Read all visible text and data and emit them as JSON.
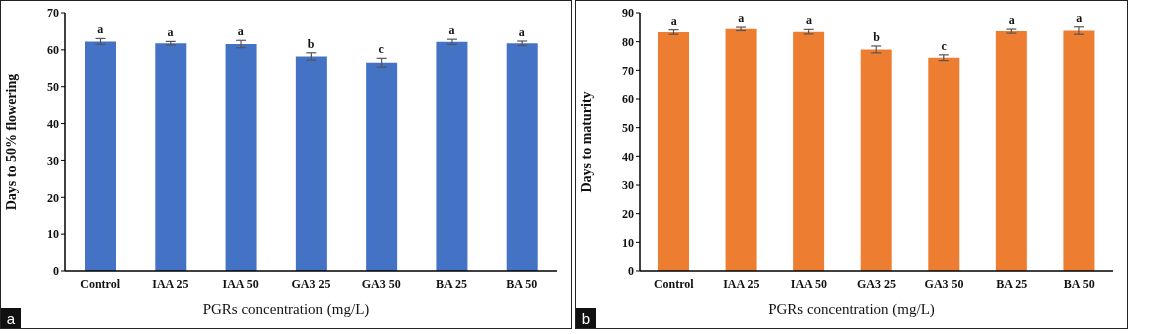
{
  "chart_data": [
    {
      "type": "bar",
      "xlabel": "PGRs concentration (mg/L)",
      "ylabel": "Days to 50% flowering",
      "categories": [
        "Control",
        "IAA 25",
        "IAA 50",
        "GA3 25",
        "GA3 50",
        "BA 25",
        "BA 50"
      ],
      "values": [
        62.3,
        61.8,
        61.6,
        58.2,
        56.5,
        62.2,
        61.8
      ],
      "errors": [
        0.8,
        0.5,
        1.0,
        1.0,
        1.2,
        0.7,
        0.6
      ],
      "color": "#4472c4",
      "ylim": [
        0,
        70
      ],
      "yticks": [
        0,
        10,
        20,
        30,
        40,
        50,
        60,
        70
      ],
      "grid": false,
      "annotations": [
        {
          "text": "a",
          "x": "Control",
          "y": 63.1
        },
        {
          "text": "a",
          "x": "IAA 25",
          "y": 62.3
        },
        {
          "text": "a",
          "x": "IAA 50",
          "y": 62.6
        },
        {
          "text": "b",
          "x": "GA3 25",
          "y": 59.2
        },
        {
          "text": "c",
          "x": "GA3 50",
          "y": 57.7
        },
        {
          "text": "a",
          "x": "BA 25",
          "y": 62.9
        },
        {
          "text": "a",
          "x": "BA 50",
          "y": 62.4
        },
        "a"
      ]
    },
    {
      "type": "bar",
      "xlabel": "PGRs concentration (mg/L)",
      "ylabel": "Days to maturity",
      "categories": [
        "Control",
        "IAA 25",
        "IAA 50",
        "GA3 25",
        "GA3 50",
        "BA 25",
        "BA 50"
      ],
      "values": [
        83.4,
        84.5,
        83.5,
        77.3,
        74.4,
        83.7,
        83.9
      ],
      "errors": [
        0.8,
        0.6,
        0.8,
        1.2,
        1.0,
        0.7,
        1.3
      ],
      "color": "#ed7d31",
      "ylim": [
        0,
        90
      ],
      "yticks": [
        0,
        10,
        20,
        30,
        40,
        50,
        60,
        70,
        80,
        90
      ],
      "grid": false,
      "annotations": [
        {
          "text": "a",
          "x": "Control",
          "y": 84.2
        },
        {
          "text": "a",
          "x": "IAA 25",
          "y": 85.1
        },
        {
          "text": "a",
          "x": "IAA 50",
          "y": 84.3
        },
        {
          "text": "b",
          "x": "GA3 25",
          "y": 78.5
        },
        {
          "text": "c",
          "x": "GA3 50",
          "y": 75.4
        },
        {
          "text": "a",
          "x": "BA 25",
          "y": 84.4
        },
        {
          "text": "a",
          "x": "BA 50",
          "y": 85.2
        },
        "b"
      ]
    }
  ]
}
